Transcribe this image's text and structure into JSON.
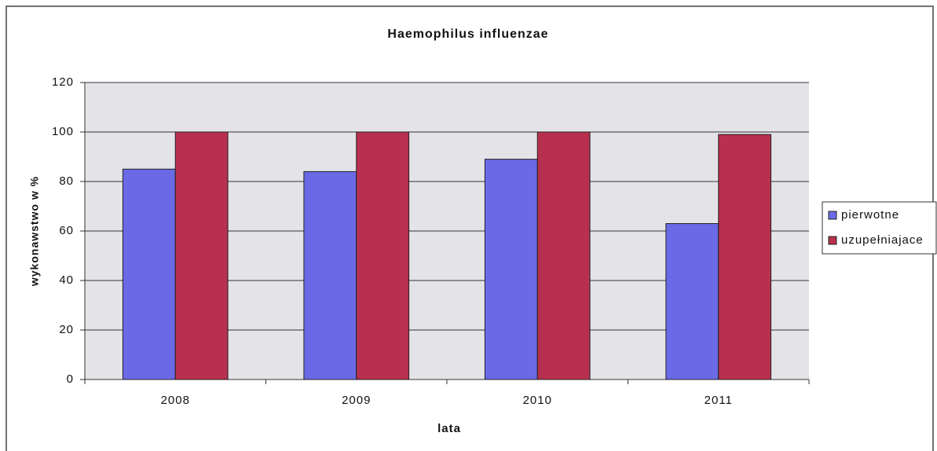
{
  "chart_data": {
    "type": "bar",
    "title": "Haemophilus influenzae",
    "x_label": "lata",
    "y_label": "wykonawstwo w %",
    "categories": [
      "2008",
      "2009",
      "2010",
      "2011"
    ],
    "series": [
      {
        "name": "pierwotne",
        "color": "#6a6ae6",
        "values": [
          85,
          84,
          89,
          63
        ]
      },
      {
        "name": "uzupełniajace",
        "color": "#b8304f",
        "values": [
          100,
          100,
          100,
          99
        ]
      }
    ],
    "ylim": [
      0,
      120
    ],
    "yticks": [
      0,
      20,
      40,
      60,
      80,
      100,
      120
    ],
    "grid": true,
    "legend": "right"
  }
}
